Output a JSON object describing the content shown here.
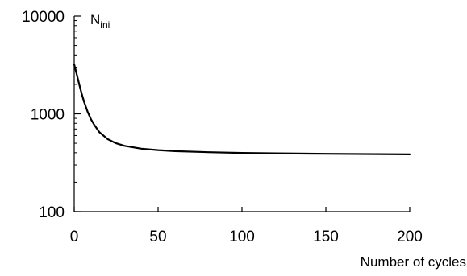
{
  "chart_data": {
    "type": "line",
    "title": "",
    "xlabel": "Number of cycles",
    "ylabel": {
      "main": "N",
      "subscript": "ini"
    },
    "xlim": [
      0,
      200
    ],
    "ylim": [
      100,
      10000
    ],
    "y_scale": "log",
    "grid": false,
    "legend": "none",
    "x_ticks": [
      0,
      50,
      100,
      150,
      200
    ],
    "x_tick_labels": [
      "0",
      "50",
      "100",
      "150",
      "200"
    ],
    "y_ticks": [
      100,
      1000,
      10000
    ],
    "y_tick_labels": [
      "100",
      "1000",
      "10000"
    ],
    "series": [
      {
        "color": "#000000",
        "x": [
          0,
          1,
          2,
          3,
          4,
          5,
          6,
          8,
          10,
          12,
          15,
          20,
          25,
          30,
          40,
          50,
          60,
          80,
          100,
          120,
          150,
          200
        ],
        "y": [
          3200,
          2750,
          2350,
          2000,
          1720,
          1490,
          1310,
          1050,
          880,
          770,
          650,
          550,
          500,
          470,
          440,
          425,
          415,
          405,
          398,
          394,
          390,
          385
        ]
      }
    ]
  }
}
